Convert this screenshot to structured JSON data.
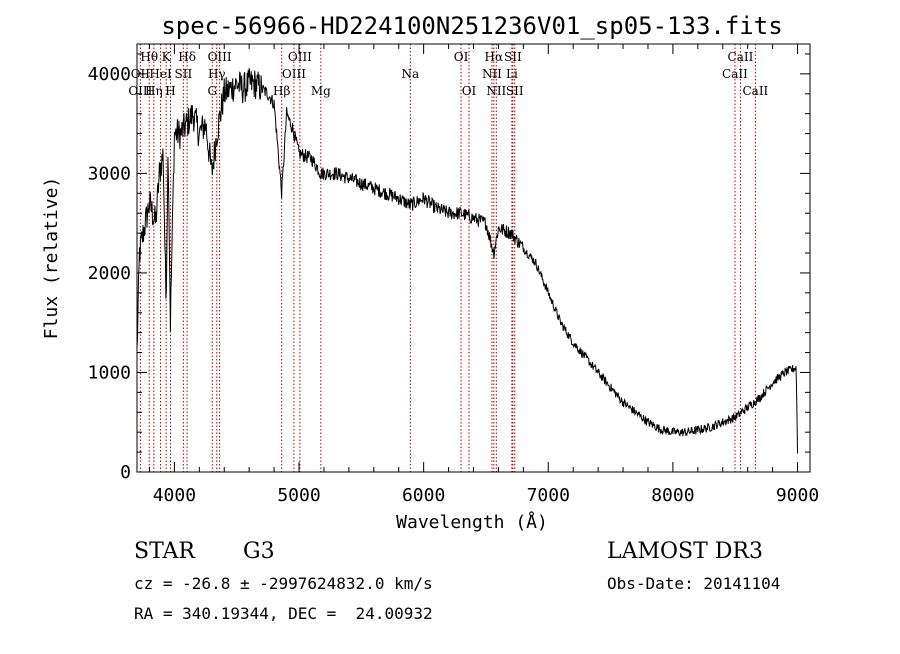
{
  "chart_data": {
    "type": "line",
    "title": "spec-56966-HD224100N251236V01_sp05-133.fits",
    "xlabel": "Wavelength (Å)",
    "ylabel": "Flux (relative)",
    "xlim": [
      3700,
      9100
    ],
    "ylim": [
      0,
      4300
    ],
    "xticks": [
      4000,
      5000,
      6000,
      7000,
      8000,
      9000
    ],
    "xtick_labels": [
      "4000",
      "5000",
      "6000",
      "7000",
      "8000",
      "9000"
    ],
    "yticks": [
      0,
      1000,
      2000,
      3000,
      4000
    ],
    "ytick_labels": [
      "0",
      "1000",
      "2000",
      "3000",
      "4000"
    ],
    "spectrum_anchors": {
      "wavelength": [
        3700,
        3720,
        3750,
        3800,
        3850,
        3880,
        3910,
        3933,
        3950,
        3968,
        4000,
        4050,
        4102,
        4150,
        4200,
        4250,
        4300,
        4340,
        4400,
        4450,
        4500,
        4550,
        4600,
        4650,
        4700,
        4750,
        4800,
        4861,
        4900,
        4950,
        5000,
        5100,
        5175,
        5300,
        5400,
        5500,
        5600,
        5700,
        5800,
        5893,
        6000,
        6100,
        6200,
        6300,
        6400,
        6500,
        6563,
        6600,
        6700,
        6800,
        6900,
        7000,
        7100,
        7200,
        7300,
        7400,
        7500,
        7600,
        7700,
        7800,
        7900,
        8000,
        8100,
        8200,
        8300,
        8400,
        8500,
        8600,
        8700,
        8800,
        8900,
        8990,
        9000
      ],
      "flux": [
        1200,
        2200,
        2400,
        2700,
        2500,
        3000,
        3200,
        1700,
        3300,
        1500,
        3400,
        3400,
        3500,
        3600,
        3400,
        3500,
        3000,
        3400,
        3800,
        3850,
        3900,
        3850,
        3900,
        3900,
        3850,
        3800,
        3700,
        2800,
        3600,
        3450,
        3200,
        3150,
        3000,
        3000,
        2950,
        2900,
        2850,
        2800,
        2750,
        2680,
        2750,
        2650,
        2600,
        2600,
        2550,
        2500,
        2200,
        2450,
        2400,
        2250,
        2100,
        1800,
        1500,
        1300,
        1150,
        1000,
        850,
        700,
        600,
        500,
        430,
        400,
        400,
        420,
        450,
        500,
        550,
        650,
        750,
        900,
        1000,
        1050,
        200
      ]
    },
    "lines": [
      {
        "name": "Hθ",
        "wavelength": 3798,
        "row": 0
      },
      {
        "name": "OII",
        "wavelength": 3727,
        "row": 1
      },
      {
        "name": "OIII",
        "wavelength": 3727,
        "row": 2
      },
      {
        "name": "Hη",
        "wavelength": 3835,
        "row": 2
      },
      {
        "name": "K",
        "wavelength": 3934,
        "row": 0
      },
      {
        "name": "HeI",
        "wavelength": 3889,
        "row": 1
      },
      {
        "name": "SII",
        "wavelength": 4072,
        "row": 1
      },
      {
        "name": "H",
        "wavelength": 3969,
        "row": 2
      },
      {
        "name": "Hδ",
        "wavelength": 4102,
        "row": 0
      },
      {
        "name": "OIII",
        "wavelength": 4363,
        "row": 0
      },
      {
        "name": "Hγ",
        "wavelength": 4340,
        "row": 1
      },
      {
        "name": "G",
        "wavelength": 4304,
        "row": 2
      },
      {
        "name": "OIII",
        "wavelength": 5007,
        "row": 0
      },
      {
        "name": "OIII",
        "wavelength": 4959,
        "row": 1
      },
      {
        "name": "Hβ",
        "wavelength": 4861,
        "row": 2
      },
      {
        "name": "Mg",
        "wavelength": 5175,
        "row": 2
      },
      {
        "name": "Na",
        "wavelength": 5893,
        "row": 1
      },
      {
        "name": "OI",
        "wavelength": 6300,
        "row": 0
      },
      {
        "name": "OI",
        "wavelength": 6364,
        "row": 2
      },
      {
        "name": "Hα",
        "wavelength": 6563,
        "row": 0
      },
      {
        "name": "SII",
        "wavelength": 6716,
        "row": 0
      },
      {
        "name": "NII",
        "wavelength": 6548,
        "row": 1
      },
      {
        "name": "Li",
        "wavelength": 6708,
        "row": 1
      },
      {
        "name": "NII",
        "wavelength": 6583,
        "row": 2
      },
      {
        "name": "SII",
        "wavelength": 6731,
        "row": 2
      },
      {
        "name": "CaII",
        "wavelength": 8542,
        "row": 0
      },
      {
        "name": "CaII",
        "wavelength": 8498,
        "row": 1
      },
      {
        "name": "CaII",
        "wavelength": 8662,
        "row": 2
      }
    ]
  },
  "info": {
    "object_class": "STAR",
    "subclass": "G3",
    "survey": "LAMOST DR3",
    "redshift": "cz = -26.8 ± -2997624832.0 km/s",
    "obs_date": "Obs-Date: 20141104",
    "coords": "RA = 340.19344, DEC =  24.00932"
  }
}
